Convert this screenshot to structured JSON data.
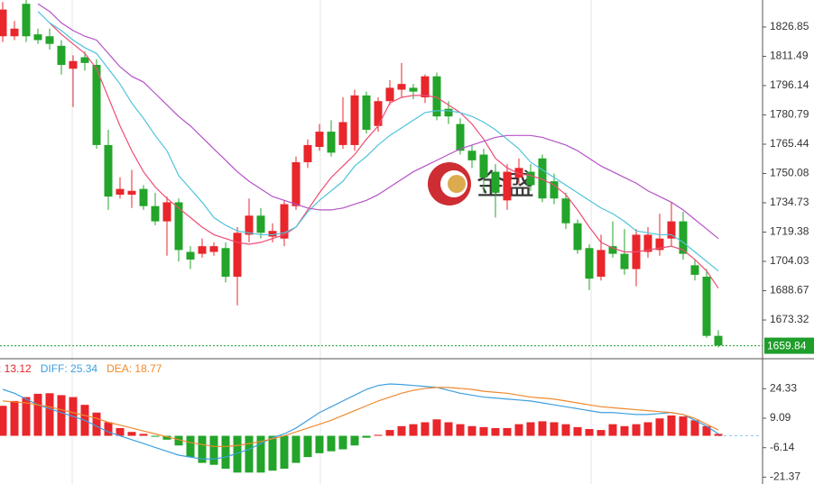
{
  "chart_data": [
    {
      "type": "candlestick",
      "ylim": [
        1653.5,
        1841.0
      ],
      "yticks": [
        1826.85,
        1811.49,
        1796.14,
        1780.79,
        1765.44,
        1750.08,
        1734.73,
        1719.38,
        1704.03,
        1688.67,
        1673.32
      ],
      "up_color": "#e8262b",
      "down_color": "#23a42a",
      "open": [
        1822,
        1822,
        1839,
        1823,
        1822,
        1817,
        1805,
        1811,
        1807,
        1765,
        1739,
        1739,
        1742,
        1733,
        1725,
        1735,
        1709,
        1708,
        1709,
        1711,
        1696,
        1718,
        1728,
        1717,
        1716,
        1733,
        1756,
        1764,
        1772,
        1765,
        1765,
        1791,
        1775,
        1788,
        1794,
        1795,
        1790,
        1801,
        1784,
        1776,
        1762,
        1760,
        1751,
        1736,
        1748,
        1751,
        1758,
        1746,
        1737,
        1724,
        1711,
        1696,
        1712,
        1708,
        1700,
        1709,
        1710,
        1716,
        1725,
        1702,
        1696,
        1665
      ],
      "high": [
        1840,
        1830,
        1841,
        1826,
        1826,
        1820,
        1812,
        1814,
        1810,
        1773,
        1748,
        1752,
        1744,
        1740,
        1738,
        1737,
        1712,
        1716,
        1714,
        1714,
        1722,
        1737,
        1732,
        1724,
        1736,
        1759,
        1768,
        1776,
        1778,
        1790,
        1794,
        1793,
        1790,
        1799,
        1808,
        1797,
        1802,
        1803,
        1788,
        1779,
        1765,
        1763,
        1755,
        1755,
        1758,
        1755,
        1760,
        1750,
        1740,
        1726,
        1713,
        1718,
        1725,
        1721,
        1721,
        1722,
        1729,
        1735,
        1730,
        1705,
        1700,
        1668
      ],
      "low": [
        1819,
        1820,
        1819,
        1818,
        1815,
        1802,
        1785,
        1804,
        1763,
        1731,
        1737,
        1732,
        1731,
        1723,
        1707,
        1704,
        1700,
        1706,
        1707,
        1693,
        1681,
        1714,
        1716,
        1714,
        1712,
        1731,
        1753,
        1762,
        1759,
        1763,
        1762,
        1771,
        1772,
        1786,
        1790,
        1789,
        1787,
        1778,
        1776,
        1760,
        1753,
        1740,
        1727,
        1731,
        1744,
        1741,
        1735,
        1734,
        1721,
        1708,
        1689,
        1694,
        1706,
        1697,
        1691,
        1706,
        1707,
        1712,
        1705,
        1694,
        1664,
        1659
      ],
      "close": [
        1836,
        1826,
        1822,
        1820,
        1818,
        1807,
        1809,
        1808,
        1765,
        1738,
        1742,
        1741,
        1733,
        1725,
        1735,
        1710,
        1705,
        1712,
        1712,
        1696,
        1719,
        1728,
        1719,
        1720,
        1734,
        1756,
        1765,
        1772,
        1761,
        1777,
        1791,
        1773,
        1788,
        1795,
        1797,
        1793,
        1801,
        1780,
        1780,
        1762,
        1757,
        1748,
        1740,
        1751,
        1753,
        1744,
        1737,
        1737,
        1724,
        1710,
        1695,
        1710,
        1708,
        1700,
        1718,
        1718,
        1716,
        1725,
        1708,
        1697,
        1665,
        1660
      ],
      "ma": [
        {
          "color": "#ee4d74",
          "values": [
            null,
            null,
            null,
            null,
            1829,
            1823,
            1818,
            1813,
            1805,
            1790,
            1775,
            1762,
            1751,
            1743,
            1737,
            1732,
            1727,
            1722,
            1718,
            1716,
            1714,
            1713,
            1714,
            1716,
            1718,
            1722,
            1731,
            1740,
            1748,
            1754,
            1760,
            1768,
            1775,
            1787,
            1790,
            1791,
            1791,
            1790,
            1786,
            1782,
            1776,
            1768,
            1758,
            1753,
            1750,
            1749,
            1747,
            1744,
            1739,
            1731,
            1722,
            1714,
            1711,
            1709,
            1709,
            1710,
            1711,
            1712,
            1710,
            1705,
            1699,
            1690
          ]
        },
        {
          "color": "#4fc3dc",
          "values": [
            null,
            null,
            null,
            1835,
            1829,
            1825,
            1820,
            1816,
            1813,
            1805,
            1797,
            1787,
            1779,
            1770,
            1762,
            1749,
            1742,
            1735,
            1727,
            1723,
            1720,
            1719,
            1718,
            1718,
            1719,
            1722,
            1730,
            1736,
            1741,
            1746,
            1754,
            1759,
            1765,
            1770,
            1774,
            1778,
            1782,
            1783,
            1783,
            1782,
            1780,
            1777,
            1773,
            1768,
            1763,
            1756,
            1752,
            1748,
            1744,
            1740,
            1736,
            1732,
            1729,
            1725,
            1720,
            1719,
            1718,
            1718,
            1714,
            1709,
            1704,
            1699
          ]
        },
        {
          "color": "#b453c6",
          "values": [
            null,
            null,
            null,
            1839,
            1835,
            1829,
            1825,
            1822,
            1820,
            1813,
            1806,
            1801,
            1798,
            1792,
            1786,
            1780,
            1775,
            1769,
            1763,
            1757,
            1751,
            1746,
            1742,
            1738,
            1736,
            1734,
            1732,
            1731,
            1731,
            1732,
            1734,
            1736,
            1739,
            1743,
            1747,
            1751,
            1754,
            1757,
            1760,
            1763,
            1765,
            1767,
            1769,
            1770,
            1770,
            1770,
            1769,
            1767,
            1765,
            1762,
            1758,
            1754,
            1751,
            1748,
            1745,
            1741,
            1738,
            1735,
            1731,
            1726,
            1721,
            1716
          ]
        }
      ],
      "last_price": 1659.84,
      "last_price_color": "#1e9e2a",
      "watermark": "金盛"
    },
    {
      "type": "macd",
      "ylim": [
        -24.91,
        39.37
      ],
      "yticks": [
        24.33,
        9.09,
        -6.14,
        -21.37
      ],
      "legend": [
        {
          "text": ": 13.12",
          "color": "#e8262b"
        },
        {
          "text": "DIFF: 25.34",
          "color": "#3d9fe0"
        },
        {
          "text": "DEA: 18.77",
          "color": "#f0892e"
        }
      ],
      "pos_color": "#e8262b",
      "neg_color": "#23a42a",
      "values": [
        15.5,
        18,
        20,
        21.7,
        22,
        21,
        20,
        16,
        12,
        7,
        4,
        2,
        1,
        -0.5,
        -2,
        -5,
        -11,
        -14,
        -15,
        -17,
        -19,
        -19,
        -19,
        -18,
        -17,
        -14,
        -11,
        -9,
        -8,
        -7,
        -5,
        -1,
        0.5,
        3,
        5,
        6,
        7,
        8.5,
        7,
        6,
        5,
        4.5,
        4,
        4,
        6,
        7,
        7.5,
        7,
        6,
        4.5,
        3.5,
        3,
        6,
        5,
        6,
        7,
        9,
        10.5,
        10,
        8,
        5,
        1
      ],
      "lines": [
        {
          "color": "#3d9fe0",
          "values": [
            24,
            22,
            19,
            16,
            14,
            12,
            10,
            8,
            5,
            2,
            0,
            -2,
            -4,
            -6,
            -8,
            -10,
            -11,
            -12,
            -12,
            -11,
            -9,
            -7,
            -4,
            -1,
            1,
            4,
            8,
            12,
            15,
            18,
            21,
            24,
            26,
            26.8,
            26.5,
            26,
            25.5,
            25,
            23.5,
            22,
            21,
            20,
            19.5,
            19,
            18.5,
            18,
            17,
            16,
            15,
            14,
            13,
            12,
            12,
            11.5,
            11,
            11,
            11.5,
            12,
            11,
            8,
            5,
            1
          ]
        },
        {
          "color": "#f0892e",
          "values": [
            18,
            17.5,
            17,
            16,
            15,
            13.5,
            12,
            10.5,
            9,
            7,
            5.5,
            4,
            2.5,
            1,
            -0.5,
            -2,
            -3.5,
            -4.5,
            -5.5,
            -5.5,
            -5,
            -4,
            -3,
            -1.5,
            0,
            2,
            4,
            6,
            8,
            10.5,
            13,
            15.5,
            18,
            20,
            22,
            23.5,
            24.5,
            25,
            25,
            24.5,
            24,
            23,
            22.5,
            22,
            21,
            20,
            19.5,
            19,
            18,
            17,
            16,
            15,
            14.5,
            14,
            13.5,
            13,
            12.5,
            12,
            11,
            9,
            6,
            3
          ]
        }
      ]
    }
  ]
}
